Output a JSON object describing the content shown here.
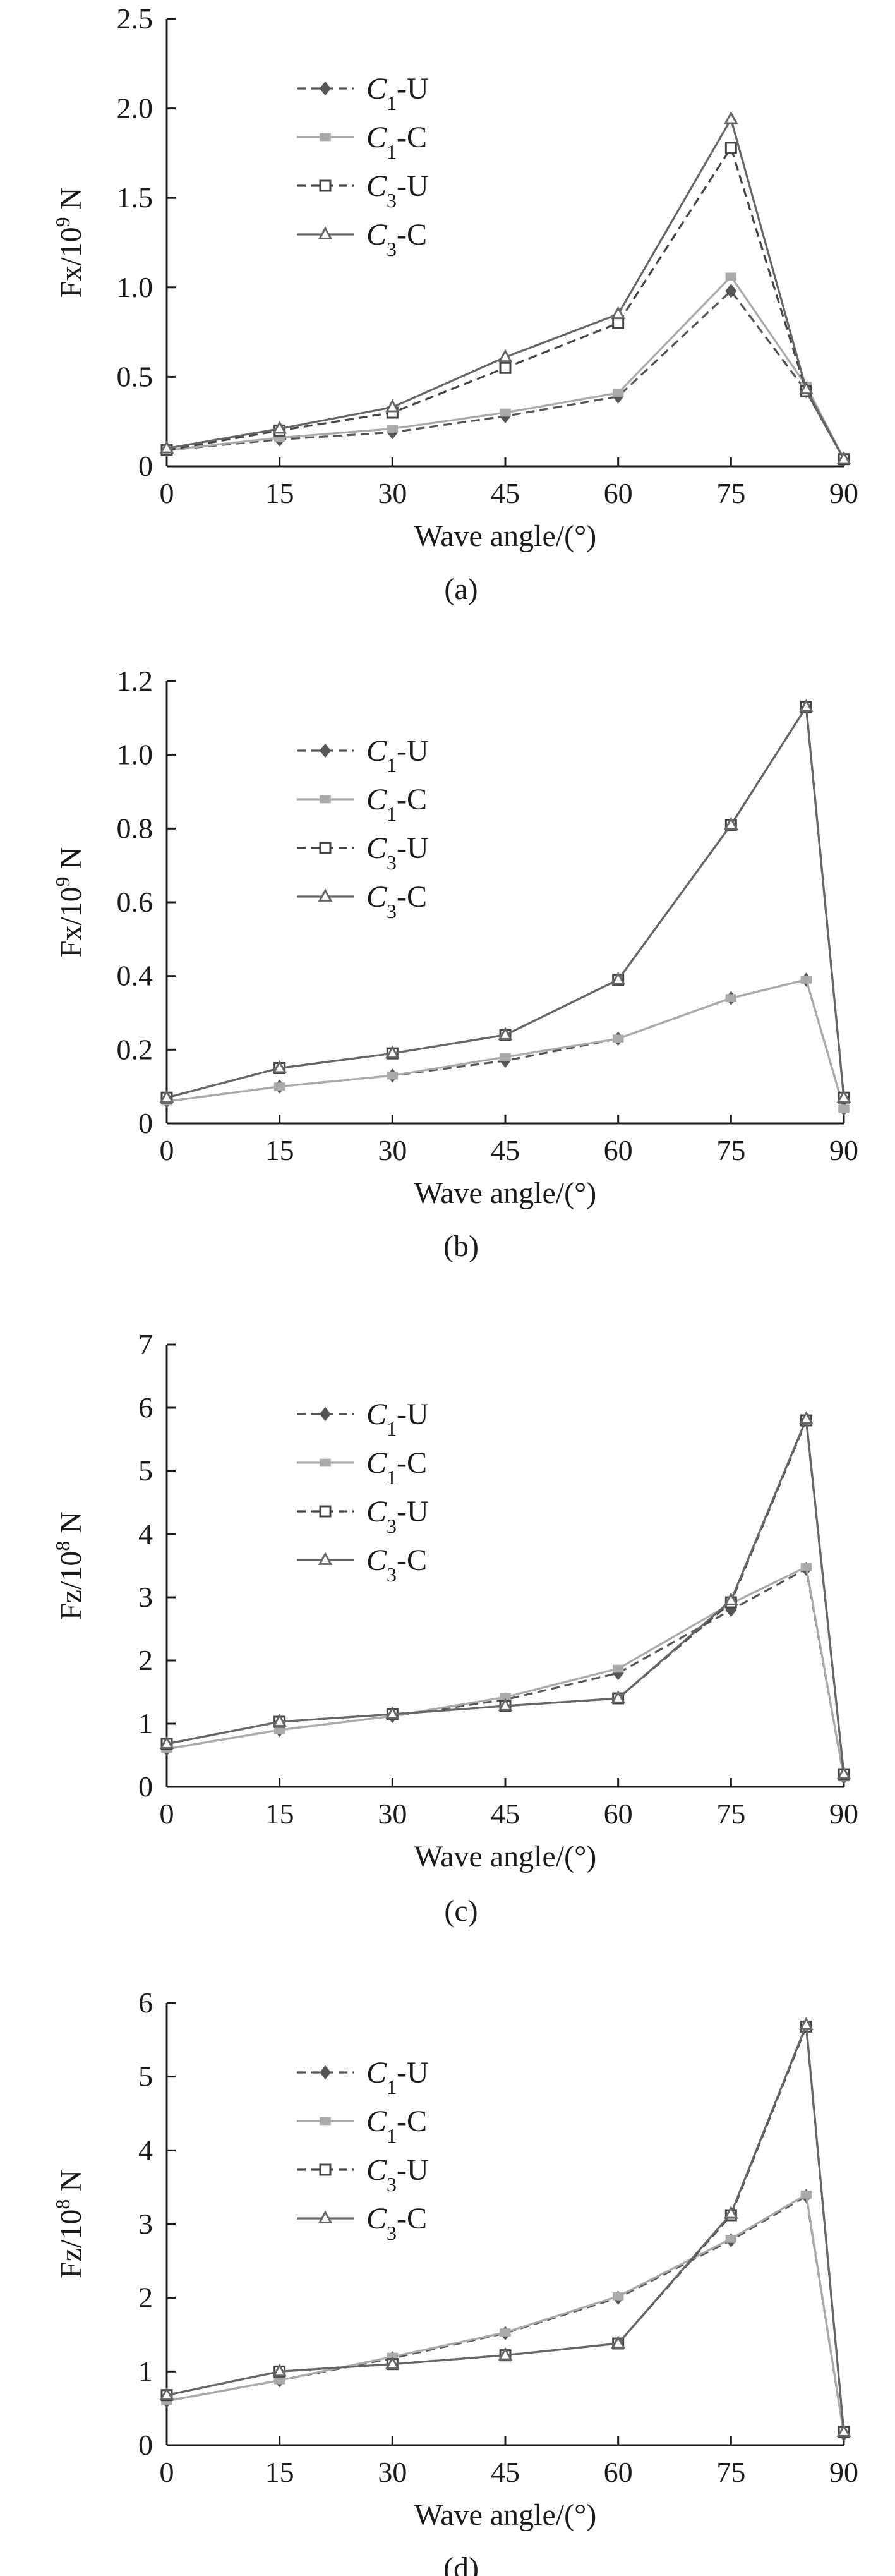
{
  "chart_data": [
    {
      "type": "line",
      "panel_label": "(a)",
      "ylabel": {
        "base": "Fx/10",
        "exp": "9",
        "unit": " N"
      },
      "xlabel": "Wave angle/(°)",
      "ylim": [
        0,
        2.5
      ],
      "yticks": [
        0,
        0.5,
        1.0,
        1.5,
        2.0,
        2.5
      ],
      "yticklabels": [
        "0",
        "0.5",
        "1.0",
        "1.5",
        "2.0",
        "2.5"
      ],
      "xlim": [
        0,
        90
      ],
      "xticks": [
        0,
        15,
        30,
        45,
        60,
        75,
        90
      ],
      "xticklabels": [
        "0",
        "15",
        "30",
        "45",
        "60",
        "75",
        "90"
      ],
      "legend_position": "top-left",
      "x": [
        0,
        15,
        30,
        45,
        60,
        75,
        85,
        90
      ],
      "series": [
        {
          "name": "C1-U",
          "sym": "C",
          "sub": "1",
          "suffix": "-U",
          "color": "#555555",
          "dash": true,
          "marker": "diamond",
          "values": [
            0.09,
            0.15,
            0.19,
            0.28,
            0.39,
            0.98,
            0.42,
            0.04
          ]
        },
        {
          "name": "C1-C",
          "sym": "C",
          "sub": "1",
          "suffix": "-C",
          "color": "#aaaaaa",
          "dash": false,
          "marker": "square-filled",
          "values": [
            0.09,
            0.16,
            0.21,
            0.3,
            0.41,
            1.06,
            0.45,
            0.04
          ]
        },
        {
          "name": "C3-U",
          "sym": "C",
          "sub": "3",
          "suffix": "-U",
          "color": "#444444",
          "dash": true,
          "marker": "square-open",
          "values": [
            0.09,
            0.2,
            0.3,
            0.55,
            0.8,
            1.78,
            0.42,
            0.04
          ]
        },
        {
          "name": "C3-C",
          "sym": "C",
          "sub": "3",
          "suffix": "-C",
          "color": "#666666",
          "dash": false,
          "marker": "triangle",
          "values": [
            0.1,
            0.21,
            0.33,
            0.61,
            0.85,
            1.94,
            0.43,
            0.04
          ]
        }
      ]
    },
    {
      "type": "line",
      "panel_label": "(b)",
      "ylabel": {
        "base": "Fx/10",
        "exp": "9",
        "unit": " N"
      },
      "xlabel": "Wave angle/(°)",
      "ylim": [
        0,
        1.2
      ],
      "yticks": [
        0,
        0.2,
        0.4,
        0.6,
        0.8,
        1.0,
        1.2
      ],
      "yticklabels": [
        "0",
        "0.2",
        "0.4",
        "0.6",
        "0.8",
        "1.0",
        "1.2"
      ],
      "xlim": [
        0,
        90
      ],
      "xticks": [
        0,
        15,
        30,
        45,
        60,
        75,
        90
      ],
      "xticklabels": [
        "0",
        "15",
        "30",
        "45",
        "60",
        "75",
        "90"
      ],
      "legend_position": "top-left",
      "x": [
        0,
        15,
        30,
        45,
        60,
        75,
        85,
        90
      ],
      "series": [
        {
          "name": "C1-U",
          "sym": "C",
          "sub": "1",
          "suffix": "-U",
          "color": "#555555",
          "dash": true,
          "marker": "diamond",
          "values": [
            0.06,
            0.1,
            0.13,
            0.17,
            0.23,
            0.34,
            0.39,
            0.04
          ]
        },
        {
          "name": "C1-C",
          "sym": "C",
          "sub": "1",
          "suffix": "-C",
          "color": "#aaaaaa",
          "dash": false,
          "marker": "square-filled",
          "values": [
            0.06,
            0.1,
            0.13,
            0.18,
            0.23,
            0.34,
            0.39,
            0.04
          ]
        },
        {
          "name": "C3-U",
          "sym": "C",
          "sub": "3",
          "suffix": "-U",
          "color": "#444444",
          "dash": true,
          "marker": "square-open",
          "values": [
            0.07,
            0.15,
            0.19,
            0.24,
            0.39,
            0.81,
            1.13,
            0.07
          ]
        },
        {
          "name": "C3-C",
          "sym": "C",
          "sub": "3",
          "suffix": "-C",
          "color": "#666666",
          "dash": false,
          "marker": "triangle",
          "values": [
            0.07,
            0.15,
            0.19,
            0.24,
            0.39,
            0.81,
            1.13,
            0.07
          ]
        }
      ]
    },
    {
      "type": "line",
      "panel_label": "(c)",
      "ylabel": {
        "base": "Fz/10",
        "exp": "8",
        "unit": " N"
      },
      "xlabel": "Wave angle/(°)",
      "ylim": [
        0,
        7
      ],
      "yticks": [
        0,
        1,
        2,
        3,
        4,
        5,
        6,
        7
      ],
      "yticklabels": [
        "0",
        "1",
        "2",
        "3",
        "4",
        "5",
        "6",
        "7"
      ],
      "xlim": [
        0,
        90
      ],
      "xticks": [
        0,
        15,
        30,
        45,
        60,
        75,
        90
      ],
      "xticklabels": [
        "0",
        "15",
        "30",
        "45",
        "60",
        "75",
        "90"
      ],
      "legend_position": "top-left",
      "x": [
        0,
        15,
        30,
        45,
        60,
        75,
        85,
        90
      ],
      "series": [
        {
          "name": "C1-U",
          "sym": "C",
          "sub": "1",
          "suffix": "-U",
          "color": "#555555",
          "dash": true,
          "marker": "diamond",
          "values": [
            0.6,
            0.9,
            1.12,
            1.38,
            1.8,
            2.8,
            3.45,
            0.15
          ]
        },
        {
          "name": "C1-C",
          "sym": "C",
          "sub": "1",
          "suffix": "-C",
          "color": "#aaaaaa",
          "dash": false,
          "marker": "square-filled",
          "values": [
            0.6,
            0.9,
            1.12,
            1.42,
            1.87,
            2.9,
            3.48,
            0.15
          ]
        },
        {
          "name": "C3-U",
          "sym": "C",
          "sub": "3",
          "suffix": "-U",
          "color": "#444444",
          "dash": true,
          "marker": "square-open",
          "values": [
            0.68,
            1.03,
            1.15,
            1.28,
            1.4,
            2.92,
            5.8,
            0.2
          ]
        },
        {
          "name": "C3-C",
          "sym": "C",
          "sub": "3",
          "suffix": "-C",
          "color": "#666666",
          "dash": false,
          "marker": "triangle",
          "values": [
            0.68,
            1.03,
            1.15,
            1.28,
            1.4,
            2.95,
            5.82,
            0.2
          ]
        }
      ]
    },
    {
      "type": "line",
      "panel_label": "(d)",
      "ylabel": {
        "base": "Fz/10",
        "exp": "8",
        "unit": " N"
      },
      "xlabel": "Wave angle/(°)",
      "ylim": [
        0,
        6
      ],
      "yticks": [
        0,
        1,
        2,
        3,
        4,
        5,
        6
      ],
      "yticklabels": [
        "0",
        "1",
        "2",
        "3",
        "4",
        "5",
        "6"
      ],
      "xlim": [
        0,
        90
      ],
      "xticks": [
        0,
        15,
        30,
        45,
        60,
        75,
        90
      ],
      "xticklabels": [
        "0",
        "15",
        "30",
        "45",
        "60",
        "75",
        "90"
      ],
      "legend_position": "top-left",
      "x": [
        0,
        15,
        30,
        45,
        60,
        75,
        85,
        90
      ],
      "series": [
        {
          "name": "C1-U",
          "sym": "C",
          "sub": "1",
          "suffix": "-U",
          "color": "#555555",
          "dash": true,
          "marker": "diamond",
          "values": [
            0.6,
            0.88,
            1.18,
            1.52,
            2.0,
            2.78,
            3.38,
            0.15
          ]
        },
        {
          "name": "C1-C",
          "sym": "C",
          "sub": "1",
          "suffix": "-C",
          "color": "#aaaaaa",
          "dash": false,
          "marker": "square-filled",
          "values": [
            0.6,
            0.88,
            1.2,
            1.53,
            2.02,
            2.8,
            3.4,
            0.15
          ]
        },
        {
          "name": "C3-U",
          "sym": "C",
          "sub": "3",
          "suffix": "-U",
          "color": "#444444",
          "dash": true,
          "marker": "square-open",
          "values": [
            0.68,
            1.0,
            1.1,
            1.22,
            1.38,
            3.12,
            5.68,
            0.18
          ]
        },
        {
          "name": "C3-C",
          "sym": "C",
          "sub": "3",
          "suffix": "-C",
          "color": "#666666",
          "dash": false,
          "marker": "triangle",
          "values": [
            0.68,
            1.0,
            1.1,
            1.22,
            1.38,
            3.14,
            5.7,
            0.18
          ]
        }
      ]
    }
  ]
}
